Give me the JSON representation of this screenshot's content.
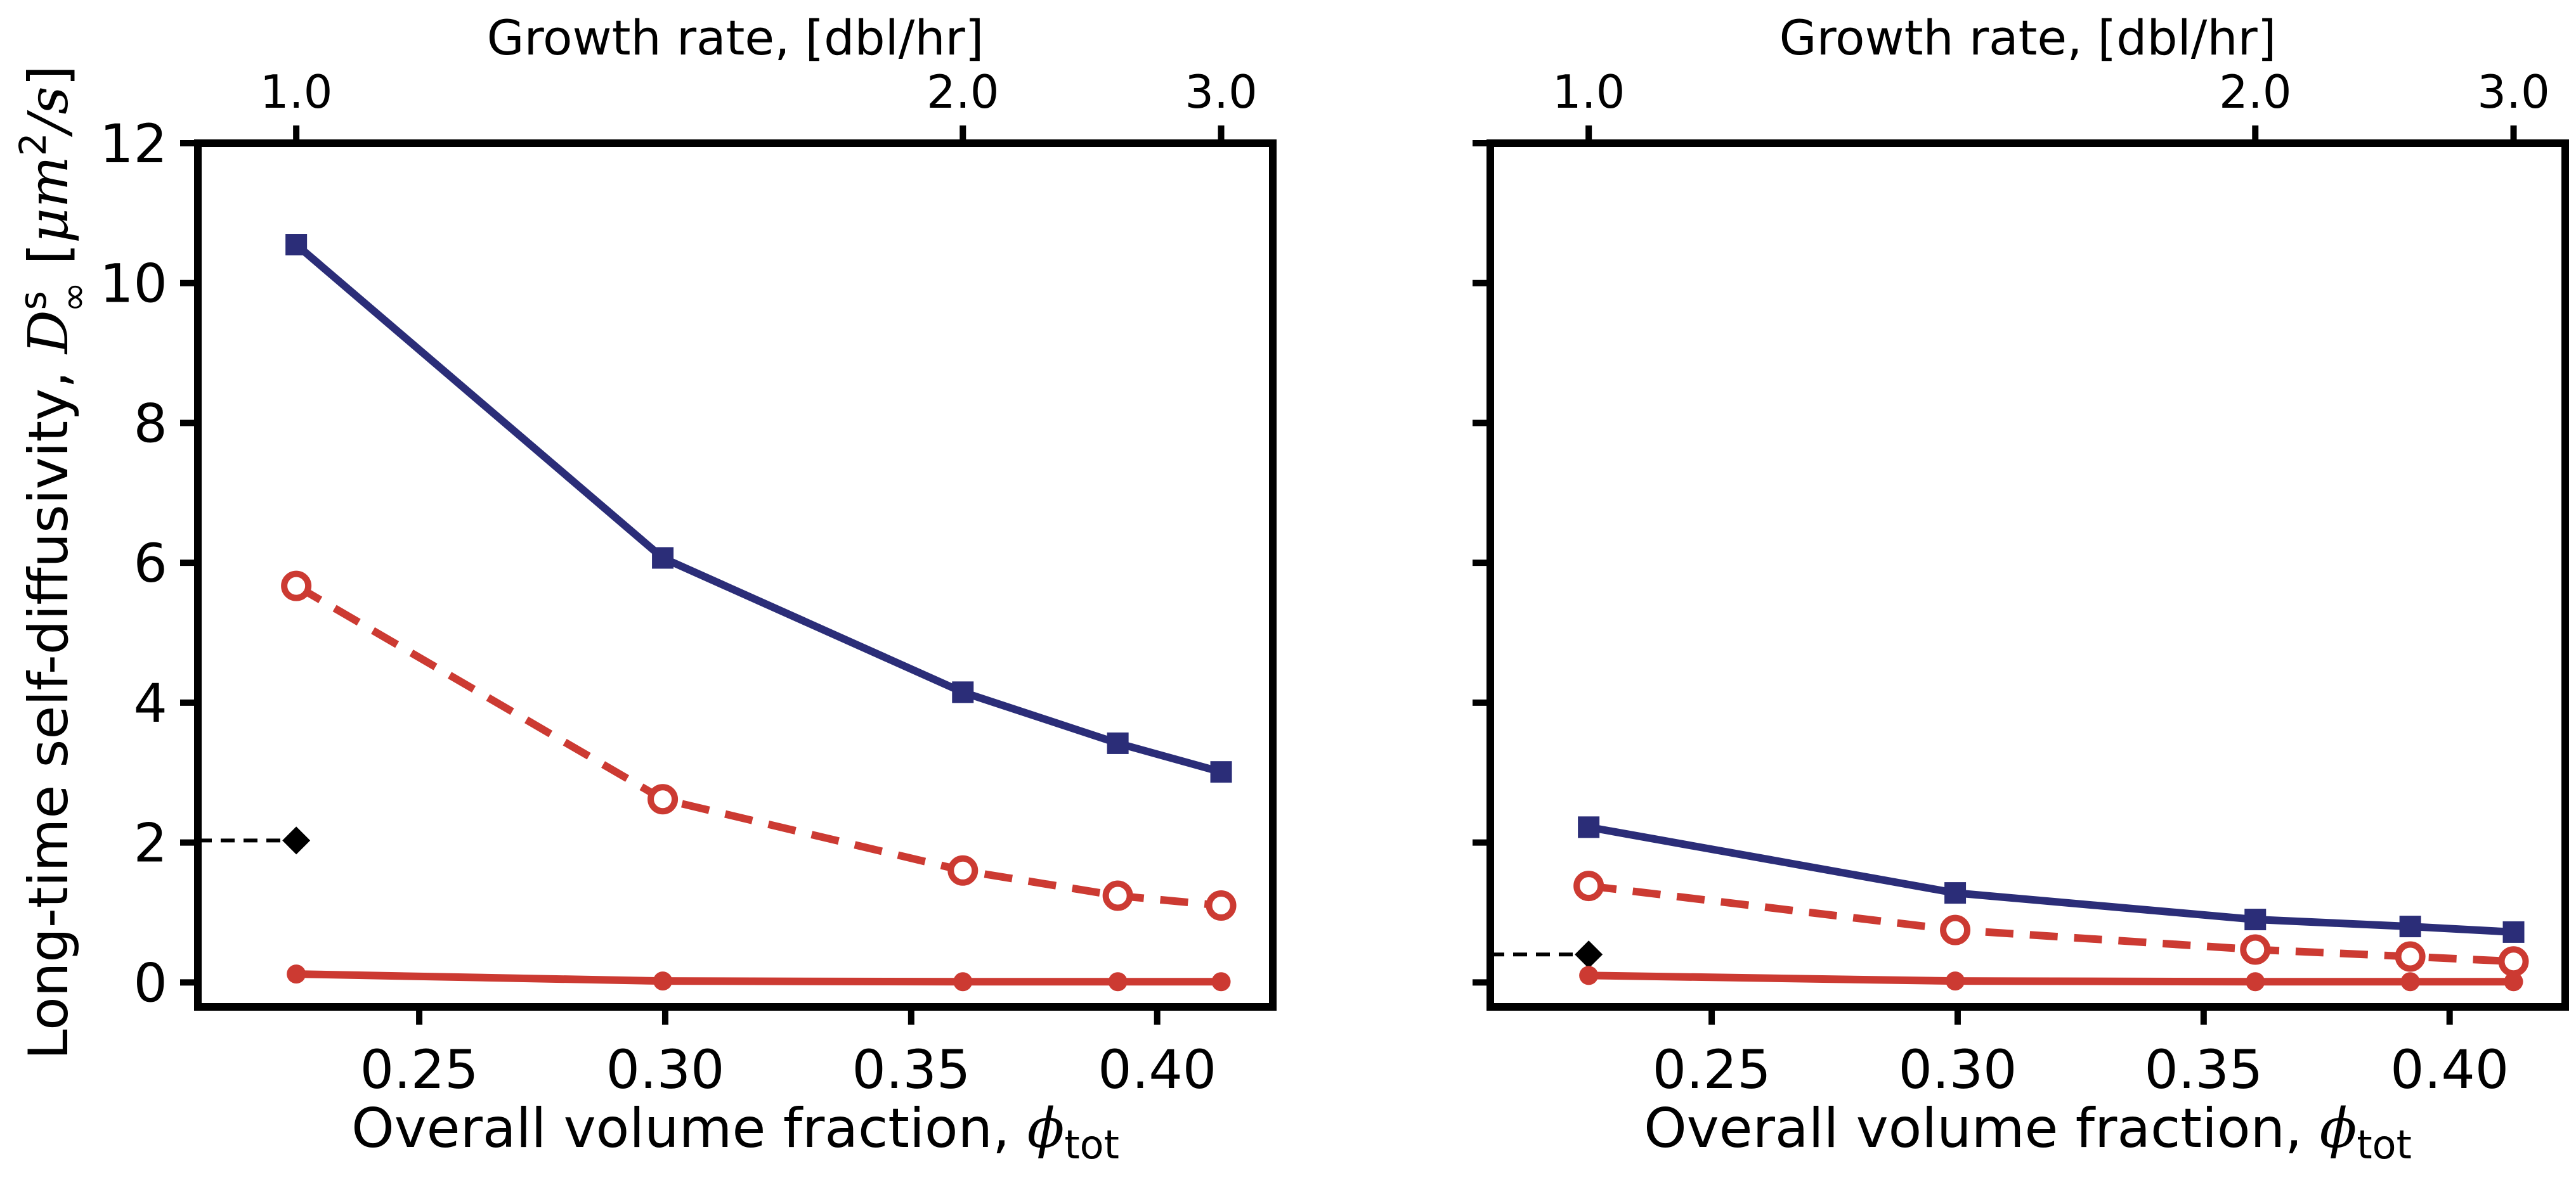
{
  "colors": {
    "navy": "#2b2d78",
    "red": "#cc3a32",
    "black": "#000000",
    "background": "#ffffff"
  },
  "chart_data": [
    {
      "type": "line",
      "panel": "left",
      "xlabel": "Overall volume fraction, ",
      "xlabel_math": "ϕ",
      "xlabel_sub": "tot",
      "ylabel": "Long-time self-diffusivity, ",
      "ylabel_math_var": "D",
      "ylabel_math_sup": "s",
      "ylabel_math_sub": "∞",
      "ylabel_unit_open": " [",
      "ylabel_unit_mu": "μm",
      "ylabel_unit_pow": "2",
      "ylabel_unit_rest": "/s",
      "ylabel_unit_close": "]",
      "xlim": [
        0.205,
        0.4235
      ],
      "ylim": [
        -0.35,
        12
      ],
      "xticks": [
        0.25,
        0.3,
        0.35,
        0.4
      ],
      "xtick_labels": [
        "0.25",
        "0.30",
        "0.35",
        "0.40"
      ],
      "yticks": [
        0,
        2,
        4,
        6,
        8,
        10,
        12
      ],
      "ytick_labels": [
        "0",
        "2",
        "4",
        "6",
        "8",
        "10",
        "12"
      ],
      "top_axis": {
        "label": "Growth rate, [dbl/hr]",
        "ticks_at_x": [
          0.225,
          0.3605,
          0.413
        ],
        "tick_labels": [
          "1.0",
          "2.0",
          "3.0"
        ]
      },
      "grid": false,
      "x": [
        0.225,
        0.2995,
        0.3605,
        0.392,
        0.413
      ],
      "series": [
        {
          "values": [
            10.55,
            6.07,
            4.15,
            3.42,
            3.01
          ],
          "color": "#2b2d78",
          "line": "solid",
          "marker": "filled-square"
        },
        {
          "values": [
            5.67,
            2.62,
            1.6,
            1.24,
            1.1
          ],
          "color": "#cc3a32",
          "line": "dashed",
          "marker": "open-circle"
        },
        {
          "values": [
            0.12,
            0.02,
            0.01,
            0.01,
            0.01
          ],
          "color": "#cc3a32",
          "line": "solid",
          "marker": "filled-circle"
        }
      ],
      "reference_marker": {
        "x": 0.225,
        "y": 2.03,
        "marker": "diamond",
        "color": "#000000",
        "dashed_to_axis": true
      }
    },
    {
      "type": "line",
      "panel": "right",
      "xlabel": "Overall volume fraction, ",
      "xlabel_math": "ϕ",
      "xlabel_sub": "tot",
      "xlim": [
        0.205,
        0.4235
      ],
      "ylim": [
        -0.35,
        12
      ],
      "xticks": [
        0.25,
        0.3,
        0.35,
        0.4
      ],
      "xtick_labels": [
        "0.25",
        "0.30",
        "0.35",
        "0.40"
      ],
      "yticks": [
        0,
        2,
        4,
        6,
        8,
        10,
        12
      ],
      "top_axis": {
        "label": "Growth rate, [dbl/hr]",
        "ticks_at_x": [
          0.225,
          0.3605,
          0.413
        ],
        "tick_labels": [
          "1.0",
          "2.0",
          "3.0"
        ]
      },
      "grid": false,
      "x": [
        0.225,
        0.2995,
        0.3605,
        0.392,
        0.413
      ],
      "series": [
        {
          "values": [
            2.22,
            1.28,
            0.9,
            0.8,
            0.72
          ],
          "color": "#2b2d78",
          "line": "solid",
          "marker": "filled-square"
        },
        {
          "values": [
            1.38,
            0.75,
            0.47,
            0.37,
            0.3
          ],
          "color": "#cc3a32",
          "line": "dashed",
          "marker": "open-circle"
        },
        {
          "values": [
            0.1,
            0.02,
            0.01,
            0.01,
            0.01
          ],
          "color": "#cc3a32",
          "line": "solid",
          "marker": "filled-circle"
        }
      ],
      "reference_marker": {
        "x": 0.225,
        "y": 0.4,
        "marker": "diamond",
        "color": "#000000",
        "dashed_to_axis": true
      }
    }
  ]
}
